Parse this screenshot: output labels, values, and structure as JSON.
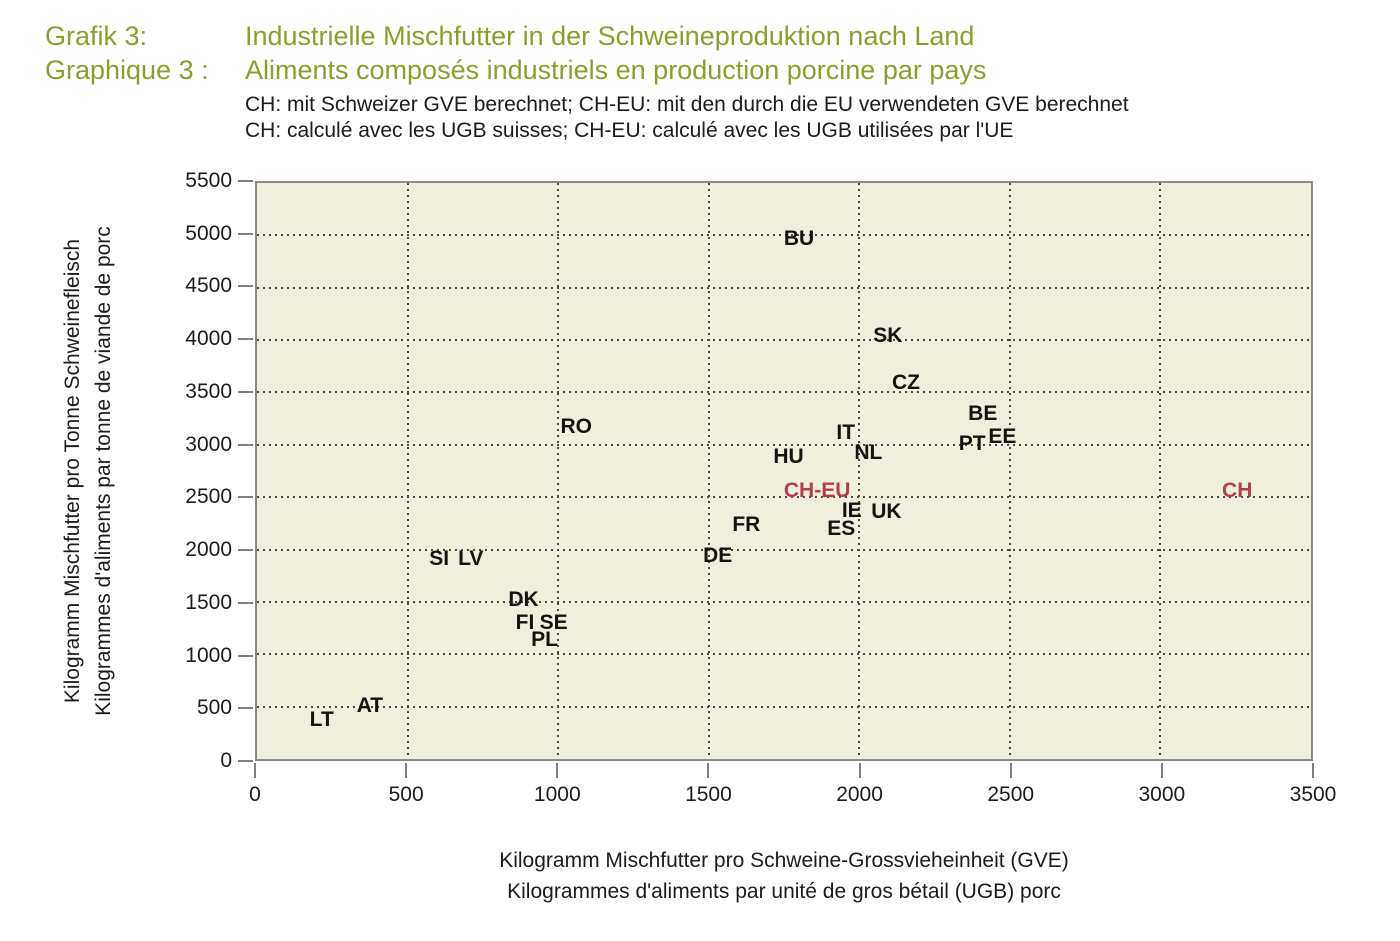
{
  "header": {
    "label_de": "Grafik 3:",
    "label_fr": "Graphique 3 :",
    "title_de": "Industrielle Mischfutter in der Schweineproduktion nach Land",
    "title_fr": "Aliments composés industriels en production porcine par pays",
    "subtitle_de": "CH: mit Schweizer GVE berechnet; CH-EU: mit den durch die EU verwendeten GVE berechnet",
    "subtitle_fr": "CH: calculé avec les UGB suisses; CH-EU: calculé avec les UGB utilisées par l'UE"
  },
  "chart_data": {
    "type": "scatter",
    "marker_style": "country-code text labels used as data markers",
    "xlabel_de": "Kilogramm Mischfutter pro Schweine-Grossvieheinheit (GVE)",
    "xlabel_fr": "Kilogrammes d'aliments par unité de gros bétail (UGB) porc",
    "ylabel_de": "Kilogramm Mischfutter pro Tonne Schweinefleisch",
    "ylabel_fr": "Kilogrammes d'aliments par tonne de viande de porc",
    "xlim": [
      0,
      3500
    ],
    "ylim": [
      0,
      5500
    ],
    "xticks": [
      0,
      500,
      1000,
      1500,
      2000,
      2500,
      3000,
      3500
    ],
    "yticks": [
      0,
      500,
      1000,
      1500,
      2000,
      2500,
      3000,
      3500,
      4000,
      4500,
      5000,
      5500
    ],
    "grid": "dotted, both axes, every 500 units",
    "colors": {
      "plot_background": "#f0eedd",
      "grid_dots": "#4c4a42",
      "axis_border": "#8b8b86",
      "tick_marks": "#7f7f7f",
      "point_label": "#141414",
      "highlight_label": "#b2404a",
      "title_green": "#8c9f2a",
      "text_black": "#1c1c1c"
    },
    "points": [
      {
        "label": "LT",
        "x": 215,
        "y": 370,
        "highlight": false
      },
      {
        "label": "AT",
        "x": 375,
        "y": 510,
        "highlight": false
      },
      {
        "label": "SI",
        "x": 605,
        "y": 1905,
        "highlight": false
      },
      {
        "label": "LV",
        "x": 710,
        "y": 1905,
        "highlight": false
      },
      {
        "label": "DK",
        "x": 885,
        "y": 1520,
        "highlight": false
      },
      {
        "label": "FI",
        "x": 890,
        "y": 1295,
        "highlight": false
      },
      {
        "label": "SE",
        "x": 985,
        "y": 1295,
        "highlight": false
      },
      {
        "label": "PL",
        "x": 955,
        "y": 1135,
        "highlight": false
      },
      {
        "label": "RO",
        "x": 1060,
        "y": 3170,
        "highlight": false
      },
      {
        "label": "DE",
        "x": 1530,
        "y": 1935,
        "highlight": false
      },
      {
        "label": "FR",
        "x": 1625,
        "y": 2235,
        "highlight": false
      },
      {
        "label": "HU",
        "x": 1765,
        "y": 2880,
        "highlight": false
      },
      {
        "label": "BU",
        "x": 1800,
        "y": 4970,
        "highlight": false
      },
      {
        "label": "CH-EU",
        "x": 1860,
        "y": 2555,
        "highlight": true
      },
      {
        "label": "ES",
        "x": 1940,
        "y": 2200,
        "highlight": false
      },
      {
        "label": "IT",
        "x": 1955,
        "y": 3110,
        "highlight": false
      },
      {
        "label": "IE",
        "x": 1975,
        "y": 2370,
        "highlight": false
      },
      {
        "label": "NL",
        "x": 2030,
        "y": 2925,
        "highlight": false
      },
      {
        "label": "UK",
        "x": 2090,
        "y": 2360,
        "highlight": false
      },
      {
        "label": "SK",
        "x": 2095,
        "y": 4040,
        "highlight": false
      },
      {
        "label": "CZ",
        "x": 2155,
        "y": 3590,
        "highlight": false
      },
      {
        "label": "BE",
        "x": 2410,
        "y": 3290,
        "highlight": false
      },
      {
        "label": "EE",
        "x": 2475,
        "y": 3075,
        "highlight": false
      },
      {
        "label": "PT",
        "x": 2375,
        "y": 3010,
        "highlight": false
      },
      {
        "label": "CH",
        "x": 3255,
        "y": 2560,
        "highlight": true
      }
    ]
  }
}
